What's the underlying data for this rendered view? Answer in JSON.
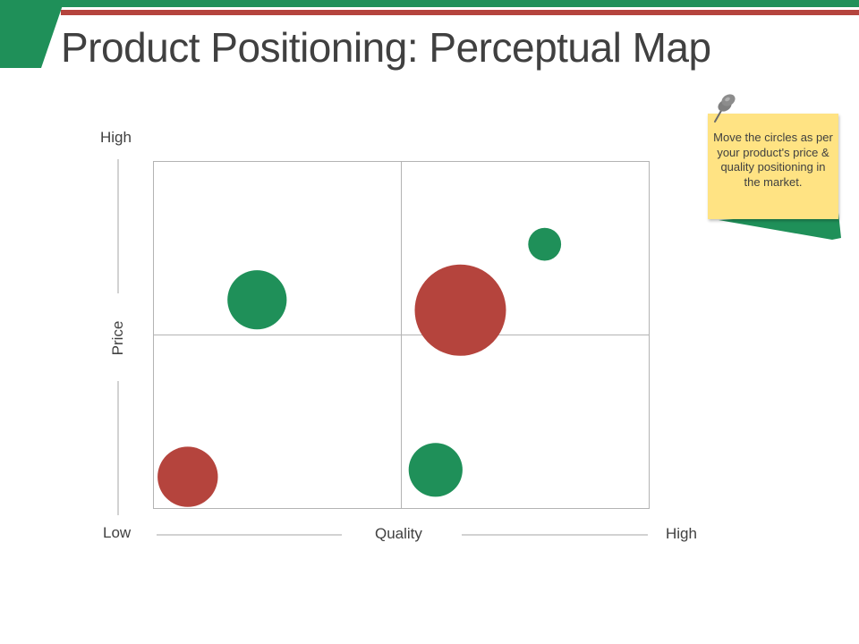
{
  "title": "Product Positioning: Perceptual Map",
  "axes": {
    "y_title": "Price",
    "y_high": "High",
    "x_title": "Quality",
    "x_low": "Low",
    "x_high": "High"
  },
  "note": {
    "text": "Move the circles as per your product's price & quality positioning in the market."
  },
  "colors": {
    "green": "#1f9059",
    "red": "#b5443d",
    "note_yellow": "#ffe383"
  },
  "icons": [
    "pushpin-icon"
  ],
  "chart_data": {
    "type": "scatter",
    "xlim": [
      0,
      1
    ],
    "ylim": [
      0,
      1
    ],
    "xlabel": "Quality",
    "ylabel": "Price",
    "points": [
      {
        "x": 0.21,
        "y": 0.6,
        "size": 0.65,
        "color": "green"
      },
      {
        "x": 0.62,
        "y": 0.57,
        "size": 1.0,
        "color": "red"
      },
      {
        "x": 0.79,
        "y": 0.76,
        "size": 0.36,
        "color": "green"
      },
      {
        "x": 0.07,
        "y": 0.09,
        "size": 0.66,
        "color": "red"
      },
      {
        "x": 0.57,
        "y": 0.11,
        "size": 0.59,
        "color": "green"
      }
    ]
  }
}
